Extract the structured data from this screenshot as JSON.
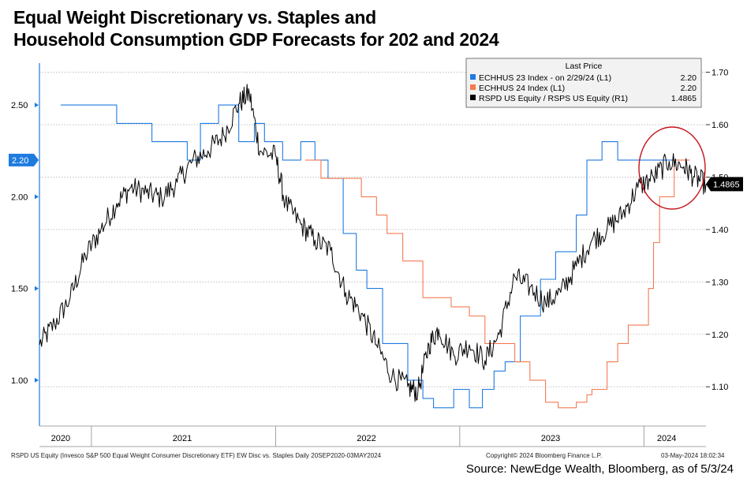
{
  "title": {
    "line1": "Equal Weight Discretionary vs. Staples and",
    "line2": "Household Consumption GDP Forecasts for 202 and 2024"
  },
  "chart_data": {
    "type": "line",
    "left_axis": {
      "ylim": [
        0.75,
        2.75
      ],
      "ticks": [
        "1.00",
        "1.50",
        "2.00",
        "2.50"
      ],
      "tick_values": [
        1.0,
        1.5,
        2.0,
        2.5
      ],
      "badge": "2.20",
      "badge_value": 2.2,
      "badge_color": "#1e7be0"
    },
    "right_axis": {
      "ylim": [
        1.025,
        1.725
      ],
      "ticks": [
        "1.10",
        "1.20",
        "1.30",
        "1.40",
        "1.50",
        "1.60",
        "1.70"
      ],
      "tick_values": [
        1.1,
        1.2,
        1.3,
        1.4,
        1.5,
        1.6,
        1.7
      ],
      "badge": "1.4865",
      "badge_value": 1.4865,
      "badge_color": "#000000"
    },
    "x_axis": {
      "range": [
        "2020-09-20",
        "2024-05-03"
      ],
      "year_labels": [
        "2020",
        "2021",
        "2022",
        "2023",
        "2024"
      ],
      "year_label_dates": [
        "2020-11-01",
        "2021-06-30",
        "2022-06-30",
        "2023-06-30",
        "2024-02-15"
      ],
      "year_boundaries": [
        "2021-01-01",
        "2022-01-01",
        "2023-01-01",
        "2024-01-01"
      ]
    },
    "legend": {
      "title": "Last Price",
      "placement": "top-right",
      "entries": [
        {
          "label": "ECHHUS 23 Index -  on 2/29/24  (L1)",
          "value": "2.20",
          "color": "#1e7be0"
        },
        {
          "label": "ECHHUS 24 Index  (L1)",
          "value": "2.20",
          "color": "#f47a50"
        },
        {
          "label": "RSPD US Equity / RSPS US Equity  (R1)",
          "value": "1.4865",
          "color": "#000000"
        }
      ]
    },
    "series": [
      {
        "name": "ECHHUS 23 Index",
        "axis": "left",
        "color": "#1e7be0",
        "step": true,
        "points": [
          [
            "2020-11-01",
            2.5
          ],
          [
            "2021-02-20",
            2.4
          ],
          [
            "2021-04-10",
            2.4
          ],
          [
            "2021-05-01",
            2.3
          ],
          [
            "2021-06-05",
            2.3
          ],
          [
            "2021-07-10",
            2.2
          ],
          [
            "2021-08-05",
            2.4
          ],
          [
            "2021-09-10",
            2.5
          ],
          [
            "2021-10-20",
            2.3
          ],
          [
            "2021-11-20",
            2.4
          ],
          [
            "2021-12-10",
            2.3
          ],
          [
            "2022-01-15",
            2.2
          ],
          [
            "2022-02-20",
            2.3
          ],
          [
            "2022-03-20",
            2.2
          ],
          [
            "2022-04-15",
            2.1
          ],
          [
            "2022-05-15",
            1.8
          ],
          [
            "2022-06-10",
            1.6
          ],
          [
            "2022-07-01",
            1.5
          ],
          [
            "2022-08-01",
            1.2
          ],
          [
            "2022-09-20",
            1.0
          ],
          [
            "2022-10-20",
            0.9
          ],
          [
            "2022-11-10",
            0.85
          ],
          [
            "2022-12-20",
            0.95
          ],
          [
            "2023-01-20",
            0.85
          ],
          [
            "2023-02-15",
            0.95
          ],
          [
            "2023-03-10",
            1.05
          ],
          [
            "2023-04-01",
            1.1
          ],
          [
            "2023-05-01",
            1.35
          ],
          [
            "2023-06-10",
            1.55
          ],
          [
            "2023-07-10",
            1.7
          ],
          [
            "2023-08-20",
            1.9
          ],
          [
            "2023-09-10",
            2.2
          ],
          [
            "2023-10-01",
            2.2
          ],
          [
            "2023-10-10",
            2.3
          ],
          [
            "2023-11-10",
            2.2
          ],
          [
            "2024-02-29",
            2.2
          ]
        ]
      },
      {
        "name": "ECHHUS 24 Index",
        "axis": "left",
        "color": "#f47a50",
        "step": true,
        "points": [
          [
            "2022-03-01",
            2.2
          ],
          [
            "2022-04-01",
            2.1
          ],
          [
            "2022-06-20",
            2.0
          ],
          [
            "2022-07-20",
            1.9
          ],
          [
            "2022-08-10",
            1.8
          ],
          [
            "2022-09-10",
            1.65
          ],
          [
            "2022-10-20",
            1.45
          ],
          [
            "2022-12-15",
            1.4
          ],
          [
            "2023-01-20",
            1.35
          ],
          [
            "2023-02-20",
            1.2
          ],
          [
            "2023-03-20",
            1.2
          ],
          [
            "2023-04-20",
            1.1
          ],
          [
            "2023-05-20",
            1.0
          ],
          [
            "2023-06-20",
            0.88
          ],
          [
            "2023-07-15",
            0.85
          ],
          [
            "2023-08-20",
            0.88
          ],
          [
            "2023-09-10",
            0.92
          ],
          [
            "2023-09-20",
            0.95
          ],
          [
            "2023-10-20",
            1.1
          ],
          [
            "2023-11-10",
            1.2
          ],
          [
            "2023-12-01",
            1.3
          ],
          [
            "2024-01-10",
            1.5
          ],
          [
            "2024-01-20",
            1.75
          ],
          [
            "2024-02-01",
            2.0
          ],
          [
            "2024-03-01",
            2.2
          ],
          [
            "2024-04-01",
            2.2
          ]
        ]
      },
      {
        "name": "RSPD US Equity / RSPS US Equity",
        "axis": "right",
        "color": "#000000",
        "step": false,
        "points": [
          [
            "2020-09-20",
            1.18
          ],
          [
            "2020-10-20",
            1.22
          ],
          [
            "2020-11-20",
            1.27
          ],
          [
            "2020-12-20",
            1.35
          ],
          [
            "2021-01-20",
            1.4
          ],
          [
            "2021-02-20",
            1.45
          ],
          [
            "2021-03-20",
            1.48
          ],
          [
            "2021-04-20",
            1.47
          ],
          [
            "2021-05-20",
            1.46
          ],
          [
            "2021-06-20",
            1.49
          ],
          [
            "2021-07-20",
            1.53
          ],
          [
            "2021-08-20",
            1.55
          ],
          [
            "2021-09-20",
            1.58
          ],
          [
            "2021-10-20",
            1.64
          ],
          [
            "2021-11-10",
            1.66
          ],
          [
            "2021-12-01",
            1.55
          ],
          [
            "2022-01-01",
            1.54
          ],
          [
            "2022-01-20",
            1.45
          ],
          [
            "2022-02-20",
            1.41
          ],
          [
            "2022-03-20",
            1.38
          ],
          [
            "2022-04-20",
            1.36
          ],
          [
            "2022-05-20",
            1.28
          ],
          [
            "2022-06-20",
            1.24
          ],
          [
            "2022-07-20",
            1.18
          ],
          [
            "2022-08-20",
            1.12
          ],
          [
            "2022-09-20",
            1.1
          ],
          [
            "2022-10-10",
            1.09
          ],
          [
            "2022-11-01",
            1.18
          ],
          [
            "2022-11-20",
            1.21
          ],
          [
            "2022-12-20",
            1.16
          ],
          [
            "2023-01-20",
            1.18
          ],
          [
            "2023-02-20",
            1.15
          ],
          [
            "2023-03-20",
            1.2
          ],
          [
            "2023-04-20",
            1.31
          ],
          [
            "2023-05-20",
            1.29
          ],
          [
            "2023-06-20",
            1.26
          ],
          [
            "2023-07-20",
            1.28
          ],
          [
            "2023-08-20",
            1.33
          ],
          [
            "2023-09-20",
            1.38
          ],
          [
            "2023-10-20",
            1.4
          ],
          [
            "2023-11-20",
            1.43
          ],
          [
            "2023-12-20",
            1.48
          ],
          [
            "2024-01-20",
            1.5
          ],
          [
            "2024-02-20",
            1.53
          ],
          [
            "2024-03-20",
            1.52
          ],
          [
            "2024-04-10",
            1.5
          ],
          [
            "2024-05-03",
            1.4865
          ]
        ]
      }
    ],
    "annotation": "red-ellipse"
  },
  "footer": {
    "left": "RSPD US Equity (Invesco S&P 500 Equal Weight Consumer Discretionary ETF) EW Disc vs. Staples  Daily 20SEP2020-03MAY2024",
    "center": "Copyright© 2024 Bloomberg Finance L.P.",
    "right": "03-May-2024 18:02:34"
  },
  "source": "Source: NewEdge Wealth, Bloomberg, as of 5/3/24"
}
